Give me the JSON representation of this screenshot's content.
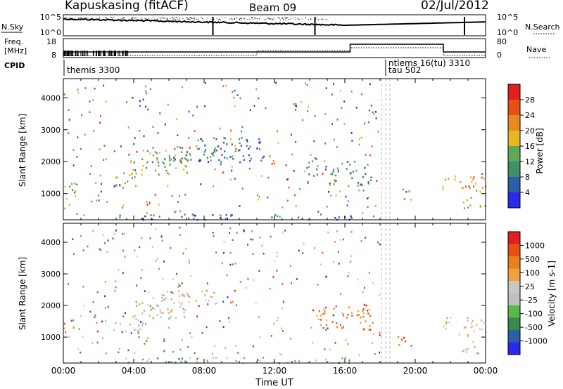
{
  "header": {
    "title": "Kapuskasing (fitACF)",
    "beam": "Beam 09",
    "date": "02/Jul/2012"
  },
  "left_labels": {
    "nsky": "N.Sky",
    "freq": "Freq.",
    "freq_unit": "[MHz]",
    "cpid": "CPID"
  },
  "right_labels": {
    "nsearch": "N.Search",
    "nave": "Nave"
  },
  "noise_ticks": {
    "left": [
      "10^5",
      "10^0"
    ],
    "right": [
      "10^5",
      "10^0"
    ]
  },
  "freq_ticks": {
    "left": [
      "18",
      "8"
    ],
    "right": [
      "80",
      "0"
    ]
  },
  "cpid_labels": [
    {
      "text": "themis 3300",
      "time": 0.1
    },
    {
      "text": "ntlems 16(tu) 3310",
      "time": 18.2
    },
    {
      "text": "tau 502",
      "time": 18.2
    }
  ],
  "colors": {
    "power": [
      "#2a2ae8",
      "#2e5da8",
      "#3f8f6a",
      "#5fa85a",
      "#e8b820",
      "#e88a20",
      "#e85018",
      "#e02020"
    ],
    "velocity": [
      "#e02020",
      "#e85018",
      "#e8801e",
      "#f0a040",
      "#c8c8c0",
      "#c0c0c0",
      "#58b848",
      "#3a8a50",
      "#2e5da8",
      "#2a2ae8"
    ]
  },
  "chart_data": [
    {
      "type": "heatmap",
      "panel": "power",
      "xlabel": "",
      "ylabel": "Slant Range [km]",
      "xlim": [
        0,
        24
      ],
      "ylim": [
        180,
        4600
      ],
      "yticks": [
        "1000",
        "2000",
        "3000",
        "4000"
      ],
      "colorbar_label": "Power [dB]",
      "colorbar_ticks": [
        "4",
        "8",
        "12",
        "16",
        "20",
        "24",
        "28"
      ],
      "regions": [
        {
          "t0": 0.0,
          "t1": 1.1,
          "r0": 950,
          "r1": 1350,
          "level": 0.45
        },
        {
          "t0": 2.6,
          "t1": 4.5,
          "r0": 1200,
          "r1": 1700,
          "level": 0.55
        },
        {
          "t0": 3.8,
          "t1": 7.2,
          "r0": 1600,
          "r1": 2400,
          "level": 0.45
        },
        {
          "t0": 5.5,
          "t1": 8.8,
          "r0": 2050,
          "r1": 2500,
          "level": 0.3
        },
        {
          "t0": 7.5,
          "t1": 11.5,
          "r0": 2000,
          "r1": 2800,
          "level": 0.25
        },
        {
          "t0": 13.8,
          "t1": 17.5,
          "r0": 1250,
          "r1": 2050,
          "level": 0.35
        },
        {
          "t0": 19.0,
          "t1": 19.8,
          "r0": 750,
          "r1": 1200,
          "level": 0.4
        },
        {
          "t0": 21.5,
          "t1": 24.0,
          "r0": 1050,
          "r1": 1650,
          "level": 0.65
        },
        {
          "t0": 22.6,
          "t1": 24.0,
          "r0": 500,
          "r1": 900,
          "level": 0.6
        },
        {
          "t0": 3.0,
          "t1": 17.0,
          "r0": 200,
          "r1": 380,
          "level": 0.2
        }
      ]
    },
    {
      "type": "heatmap",
      "panel": "velocity",
      "xlabel": "Time UT",
      "ylabel": "Slant Range [km]",
      "xlim": [
        0,
        24
      ],
      "ylim": [
        180,
        4600
      ],
      "xticks": [
        "00:00",
        "04:00",
        "08:00",
        "12:00",
        "16:00",
        "20:00",
        "00:00"
      ],
      "yticks": [
        "1000",
        "2000",
        "3000",
        "4000"
      ],
      "colorbar_label": "Velocity [m s-1]",
      "colorbar_ticks": [
        "1000",
        "500",
        "100",
        "25",
        "-25",
        "-100",
        "-500",
        "-1000"
      ],
      "regions": [
        {
          "t0": 0.0,
          "t1": 1.1,
          "r0": 950,
          "r1": 1350,
          "level": 0.45
        },
        {
          "t0": 2.6,
          "t1": 4.5,
          "r0": 1200,
          "r1": 1700,
          "level": 0.45
        },
        {
          "t0": 3.8,
          "t1": 7.2,
          "r0": 1600,
          "r1": 2400,
          "level": 0.45
        },
        {
          "t0": 5.5,
          "t1": 8.8,
          "r0": 2050,
          "r1": 2500,
          "level": 0.45
        },
        {
          "t0": 14.0,
          "t1": 17.5,
          "r0": 1250,
          "r1": 2050,
          "level": 0.2
        },
        {
          "t0": 19.0,
          "t1": 19.8,
          "r0": 750,
          "r1": 1200,
          "level": 0.15
        },
        {
          "t0": 21.5,
          "t1": 24.0,
          "r0": 1050,
          "r1": 1650,
          "level": 0.45
        },
        {
          "t0": 22.6,
          "t1": 24.0,
          "r0": 500,
          "r1": 900,
          "level": 0.45
        },
        {
          "t0": 3.0,
          "t1": 17.0,
          "r0": 200,
          "r1": 380,
          "level": 0.6
        }
      ]
    }
  ]
}
